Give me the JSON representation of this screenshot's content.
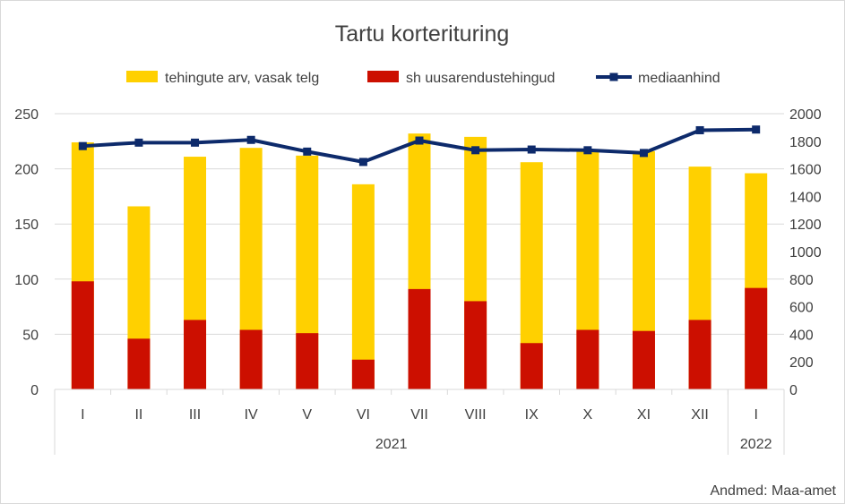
{
  "chart_data": {
    "type": "bar",
    "title": "Tartu korterituring",
    "source": "Andmed: Maa-amet",
    "categories": [
      "I",
      "II",
      "III",
      "IV",
      "V",
      "VI",
      "VII",
      "VIII",
      "IX",
      "X",
      "XI",
      "XII",
      "I"
    ],
    "groups": [
      {
        "label": "2021",
        "span": 12
      },
      {
        "label": "2022",
        "span": 1
      }
    ],
    "series": [
      {
        "name": "tehingute arv, vasak telg",
        "type": "bar",
        "axis": "left",
        "color": "#ffd000",
        "values": [
          224,
          166,
          211,
          219,
          212,
          186,
          232,
          229,
          206,
          216,
          216,
          202,
          196
        ]
      },
      {
        "name": "sh uusarendustehingud",
        "type": "bar",
        "axis": "left",
        "color": "#cc0f00",
        "values": [
          98,
          46,
          63,
          54,
          51,
          27,
          91,
          80,
          42,
          54,
          53,
          63,
          92
        ]
      },
      {
        "name": "mediaanhind",
        "type": "line",
        "axis": "right",
        "color": "#0d2a6b",
        "values": [
          1765,
          1790,
          1790,
          1810,
          1725,
          1650,
          1805,
          1735,
          1740,
          1735,
          1715,
          1880,
          1885
        ]
      }
    ],
    "yleft": {
      "min": 0,
      "max": 250,
      "ticks": [
        0,
        50,
        100,
        150,
        200,
        250
      ]
    },
    "yright": {
      "min": 0,
      "max": 2000,
      "ticks": [
        0,
        200,
        400,
        600,
        800,
        1000,
        1200,
        1400,
        1600,
        1800,
        2000
      ]
    },
    "legend_position": "top",
    "grid": true
  }
}
